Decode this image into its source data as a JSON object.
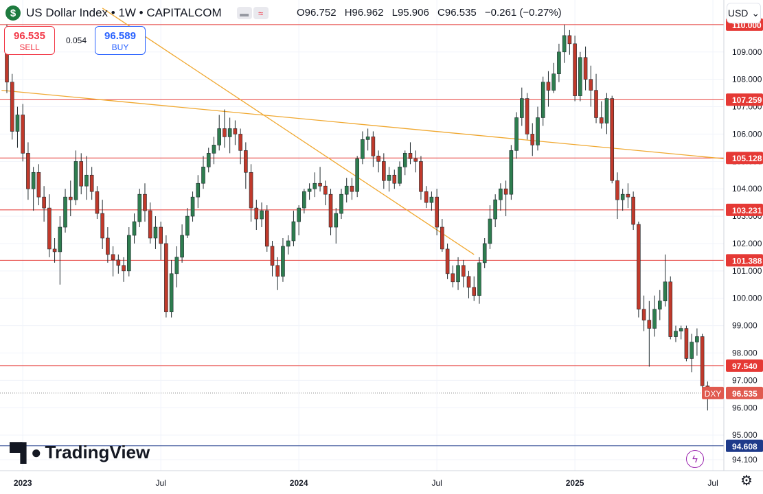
{
  "header": {
    "logo_symbol": "$",
    "title": "US Dollar Index • 1W • CAPITALCOM",
    "open": "O96.752",
    "high": "H96.962",
    "low": "L95.906",
    "close": "C96.535",
    "change": "−0.261 (−0.27%)"
  },
  "trade": {
    "sell_price": "96.535",
    "sell_label": "SELL",
    "spread": "0.054",
    "buy_price": "96.589",
    "buy_label": "BUY"
  },
  "currency_button": "USD",
  "branding": "TradingView",
  "colors": {
    "up": "#2e7d4f",
    "down": "#c0392b",
    "level_line": "#e53935",
    "trend_line": "#f0a830",
    "price_tag": "#e05a4f",
    "support_blue": "#1e3a8a"
  },
  "chart_data": {
    "type": "candlestick",
    "title": "US Dollar Index • 1W • CAPITALCOM",
    "symbol_tag": "DXY",
    "current_price": 96.535,
    "ylim": [
      93.7,
      110.9
    ],
    "y_ticks": [
      "94.100",
      "95.000",
      "96.000",
      "97.000",
      "98.000",
      "99.000",
      "100.000",
      "101.000",
      "102.000",
      "103.000",
      "104.000",
      "105.000",
      "106.000",
      "107.000",
      "108.000",
      "109.000",
      "110.000"
    ],
    "x_ticks": [
      {
        "label": "2023",
        "t": 3
      },
      {
        "label": "Jul",
        "t": 29
      },
      {
        "label": "2024",
        "t": 55
      },
      {
        "label": "Jul",
        "t": 81
      },
      {
        "label": "2025",
        "t": 107
      },
      {
        "label": "Jul",
        "t": 133
      }
    ],
    "horizontal_levels": [
      {
        "value": 110.0,
        "label": "110.000",
        "color": "red"
      },
      {
        "value": 107.259,
        "label": "107.259",
        "color": "red"
      },
      {
        "value": 105.128,
        "label": "105.128",
        "color": "red"
      },
      {
        "value": 103.231,
        "label": "103.231",
        "color": "red"
      },
      {
        "value": 101.388,
        "label": "101.388",
        "color": "red"
      },
      {
        "value": 97.54,
        "label": "97.540",
        "color": "red"
      },
      {
        "value": 94.608,
        "label": "94.608",
        "color": "blue"
      }
    ],
    "trend_lines": [
      {
        "t1": -1,
        "v1": 107.6,
        "t2": 146,
        "v2": 104.9
      },
      {
        "t1": 18,
        "v1": 110.6,
        "t2": 88,
        "v2": 101.6
      }
    ],
    "candles": [
      [
        109.3,
        110.0,
        107.5,
        107.9
      ],
      [
        107.9,
        108.2,
        105.8,
        106.1
      ],
      [
        106.1,
        107.0,
        105.5,
        106.7
      ],
      [
        106.7,
        107.1,
        105.0,
        105.3
      ],
      [
        105.3,
        105.7,
        103.6,
        104.0
      ],
      [
        104.0,
        104.8,
        103.2,
        104.6
      ],
      [
        104.6,
        104.9,
        103.4,
        103.7
      ],
      [
        103.7,
        104.1,
        102.8,
        103.3
      ],
      [
        103.3,
        103.8,
        101.5,
        101.8
      ],
      [
        101.8,
        102.2,
        101.3,
        101.7
      ],
      [
        101.7,
        103.0,
        100.5,
        102.6
      ],
      [
        102.6,
        104.0,
        102.4,
        103.7
      ],
      [
        103.7,
        104.3,
        103.0,
        103.6
      ],
      [
        103.6,
        105.4,
        103.4,
        105.0
      ],
      [
        105.0,
        105.3,
        103.8,
        104.1
      ],
      [
        104.1,
        105.2,
        103.6,
        104.5
      ],
      [
        104.5,
        104.8,
        103.6,
        103.9
      ],
      [
        103.9,
        104.1,
        102.9,
        103.1
      ],
      [
        103.1,
        103.6,
        101.8,
        102.2
      ],
      [
        102.2,
        102.6,
        101.3,
        101.6
      ],
      [
        101.6,
        101.9,
        100.8,
        101.4
      ],
      [
        101.4,
        101.6,
        100.9,
        101.2
      ],
      [
        101.2,
        101.5,
        100.6,
        101.0
      ],
      [
        101.0,
        102.6,
        100.8,
        102.3
      ],
      [
        102.3,
        103.1,
        102.0,
        102.8
      ],
      [
        102.8,
        104.0,
        102.6,
        103.8
      ],
      [
        103.8,
        104.2,
        102.8,
        103.2
      ],
      [
        103.2,
        103.5,
        102.0,
        102.2
      ],
      [
        102.2,
        103.0,
        101.8,
        102.6
      ],
      [
        102.6,
        102.8,
        101.4,
        102.0
      ],
      [
        102.0,
        102.3,
        99.3,
        99.5
      ],
      [
        99.5,
        101.4,
        99.3,
        100.9
      ],
      [
        100.9,
        101.9,
        100.4,
        101.5
      ],
      [
        101.5,
        102.7,
        101.3,
        102.3
      ],
      [
        102.3,
        103.3,
        102.2,
        103.0
      ],
      [
        103.0,
        103.9,
        102.8,
        103.7
      ],
      [
        103.7,
        104.5,
        103.3,
        104.2
      ],
      [
        104.2,
        105.2,
        104.0,
        104.8
      ],
      [
        104.8,
        105.5,
        104.6,
        105.3
      ],
      [
        105.3,
        105.9,
        104.9,
        105.6
      ],
      [
        105.6,
        106.7,
        105.4,
        106.2
      ],
      [
        106.2,
        106.9,
        105.5,
        105.9
      ],
      [
        105.9,
        106.6,
        105.3,
        106.2
      ],
      [
        106.2,
        106.5,
        105.6,
        106.0
      ],
      [
        106.0,
        106.2,
        104.9,
        105.4
      ],
      [
        105.4,
        105.7,
        104.0,
        104.6
      ],
      [
        104.6,
        104.9,
        102.8,
        103.3
      ],
      [
        103.3,
        103.6,
        102.5,
        102.9
      ],
      [
        102.9,
        103.5,
        102.6,
        103.2
      ],
      [
        103.2,
        103.4,
        101.7,
        101.9
      ],
      [
        101.9,
        102.1,
        100.8,
        101.2
      ],
      [
        101.2,
        101.5,
        100.3,
        100.8
      ],
      [
        100.8,
        102.2,
        100.6,
        101.9
      ],
      [
        101.9,
        102.3,
        101.6,
        102.1
      ],
      [
        102.1,
        103.2,
        101.9,
        102.8
      ],
      [
        102.8,
        103.4,
        102.3,
        103.3
      ],
      [
        103.3,
        104.0,
        103.1,
        103.9
      ],
      [
        103.9,
        104.2,
        103.6,
        104.0
      ],
      [
        104.0,
        104.6,
        103.7,
        104.2
      ],
      [
        104.2,
        104.8,
        103.9,
        104.1
      ],
      [
        104.1,
        104.3,
        103.4,
        103.8
      ],
      [
        103.8,
        104.0,
        102.3,
        102.6
      ],
      [
        102.6,
        103.3,
        102.0,
        103.1
      ],
      [
        103.1,
        104.0,
        102.9,
        103.8
      ],
      [
        103.8,
        104.4,
        103.5,
        104.1
      ],
      [
        104.1,
        104.4,
        103.6,
        103.9
      ],
      [
        103.9,
        105.2,
        103.7,
        105.1
      ],
      [
        105.1,
        106.1,
        104.9,
        105.8
      ],
      [
        105.8,
        106.2,
        105.4,
        105.9
      ],
      [
        105.9,
        106.1,
        104.8,
        105.2
      ],
      [
        105.2,
        105.4,
        104.6,
        105.0
      ],
      [
        105.0,
        105.3,
        104.0,
        104.3
      ],
      [
        104.3,
        104.8,
        103.9,
        104.5
      ],
      [
        104.5,
        104.7,
        104.0,
        104.2
      ],
      [
        104.2,
        105.0,
        104.1,
        104.8
      ],
      [
        104.8,
        105.4,
        104.5,
        105.3
      ],
      [
        105.3,
        105.7,
        104.9,
        105.1
      ],
      [
        105.1,
        105.4,
        104.6,
        105.0
      ],
      [
        105.0,
        105.2,
        103.6,
        103.9
      ],
      [
        103.9,
        104.1,
        103.3,
        103.5
      ],
      [
        103.5,
        103.9,
        103.2,
        103.7
      ],
      [
        103.7,
        104.0,
        102.3,
        102.6
      ],
      [
        102.6,
        102.9,
        101.7,
        101.8
      ],
      [
        101.8,
        102.0,
        100.7,
        100.9
      ],
      [
        100.9,
        101.2,
        100.4,
        100.6
      ],
      [
        100.6,
        101.5,
        100.3,
        101.2
      ],
      [
        101.2,
        101.4,
        100.4,
        100.8
      ],
      [
        100.8,
        101.0,
        100.0,
        100.4
      ],
      [
        100.4,
        100.8,
        99.9,
        100.1
      ],
      [
        100.1,
        101.5,
        99.8,
        101.3
      ],
      [
        101.3,
        102.2,
        101.1,
        102.0
      ],
      [
        102.0,
        103.4,
        101.8,
        102.9
      ],
      [
        102.9,
        103.8,
        102.6,
        103.6
      ],
      [
        103.6,
        104.2,
        103.2,
        104.0
      ],
      [
        104.0,
        104.3,
        103.0,
        103.8
      ],
      [
        103.8,
        105.6,
        103.6,
        105.4
      ],
      [
        105.4,
        106.8,
        105.1,
        106.6
      ],
      [
        106.6,
        107.7,
        106.3,
        107.3
      ],
      [
        107.3,
        107.5,
        105.8,
        106.0
      ],
      [
        106.0,
        106.4,
        105.2,
        105.6
      ],
      [
        105.6,
        107.0,
        105.4,
        106.6
      ],
      [
        106.6,
        108.1,
        106.3,
        107.9
      ],
      [
        107.9,
        108.3,
        107.0,
        107.6
      ],
      [
        107.6,
        108.6,
        107.5,
        108.2
      ],
      [
        108.2,
        109.3,
        107.9,
        109.0
      ],
      [
        109.0,
        110.0,
        108.6,
        109.6
      ],
      [
        109.6,
        109.8,
        108.9,
        109.3
      ],
      [
        109.3,
        109.6,
        107.2,
        107.4
      ],
      [
        107.4,
        109.0,
        107.2,
        108.8
      ],
      [
        108.8,
        109.2,
        107.6,
        108.0
      ],
      [
        108.0,
        108.5,
        107.0,
        107.6
      ],
      [
        107.6,
        108.2,
        106.4,
        106.6
      ],
      [
        106.6,
        107.2,
        106.2,
        106.4
      ],
      [
        106.4,
        107.5,
        106.0,
        107.3
      ],
      [
        107.3,
        107.4,
        104.2,
        104.3
      ],
      [
        104.3,
        104.6,
        102.9,
        103.6
      ],
      [
        103.6,
        104.0,
        103.2,
        103.8
      ],
      [
        103.8,
        104.2,
        103.3,
        103.7
      ],
      [
        103.7,
        103.9,
        102.5,
        102.7
      ],
      [
        102.7,
        102.8,
        99.3,
        99.6
      ],
      [
        99.6,
        100.1,
        98.8,
        99.2
      ],
      [
        99.2,
        99.9,
        97.5,
        98.9
      ],
      [
        98.9,
        100.1,
        98.6,
        99.6
      ],
      [
        99.6,
        100.3,
        99.2,
        99.9
      ],
      [
        99.9,
        101.6,
        99.7,
        100.6
      ],
      [
        100.6,
        100.8,
        98.5,
        98.6
      ],
      [
        98.6,
        99.0,
        98.4,
        98.8
      ],
      [
        98.8,
        99.0,
        98.5,
        98.9
      ],
      [
        98.9,
        99.0,
        97.7,
        97.8
      ],
      [
        97.8,
        98.7,
        97.3,
        98.4
      ],
      [
        98.4,
        98.9,
        97.9,
        98.6
      ],
      [
        98.6,
        98.7,
        96.7,
        96.8
      ],
      [
        96.8,
        96.96,
        95.9,
        96.535
      ]
    ]
  }
}
